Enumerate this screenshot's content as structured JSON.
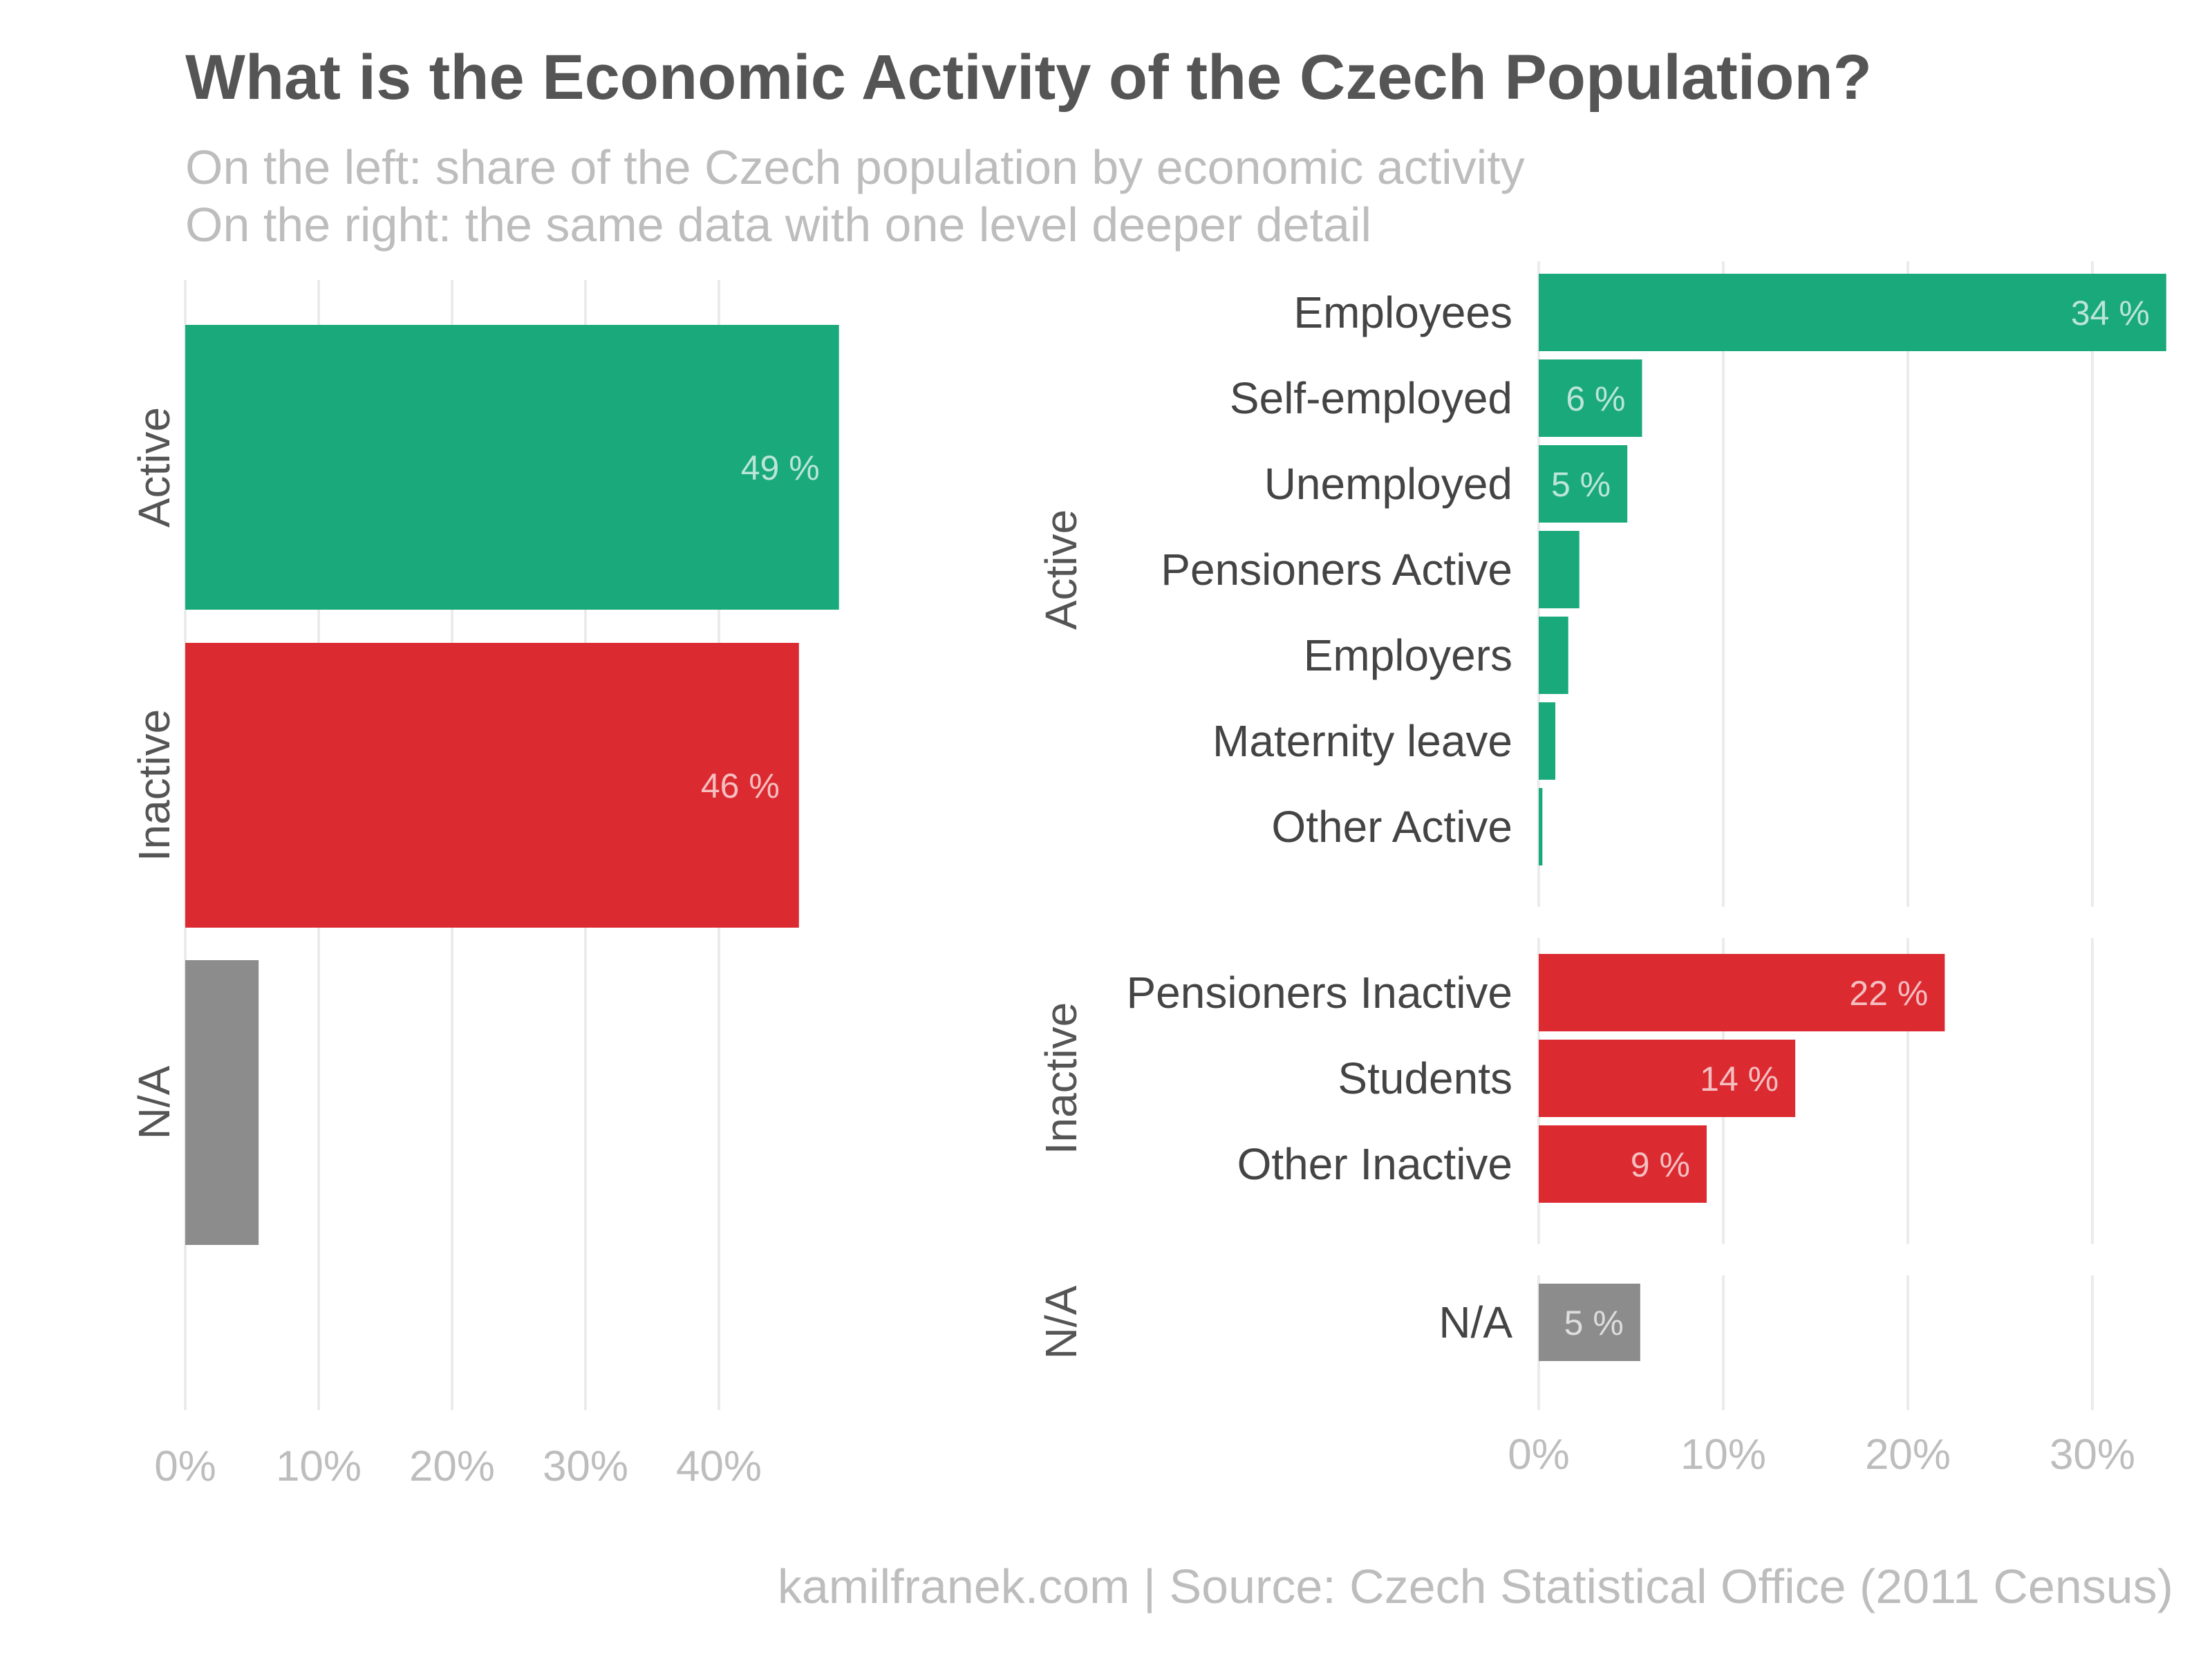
{
  "title": "What is the Economic Activity of the Czech Population?",
  "subtitle_lines": [
    "On the left: share of the Czech population by economic activity",
    "On the right: the same data with one level deeper detail"
  ],
  "caption": "kamilfranek.com  |  Source: Czech Statistical Office (2011 Census)",
  "colors": {
    "Active": "#1aa97a",
    "Inactive": "#dc2a31",
    "N/A": "#8c8c8c"
  },
  "chart_data": [
    {
      "type": "bar",
      "orientation": "horizontal",
      "categories": [
        "Active",
        "Inactive",
        "N/A"
      ],
      "values": [
        49,
        46,
        5.5
      ],
      "value_labels": [
        "49 %",
        "46 %",
        ""
      ],
      "xticks": [
        "0%",
        "10%",
        "20%",
        "30%",
        "40%"
      ],
      "xtick_values": [
        0,
        10,
        20,
        30,
        40
      ],
      "xlim": [
        0,
        50
      ],
      "grid": true
    },
    {
      "type": "bar",
      "orientation": "horizontal",
      "facets": [
        {
          "name": "Active",
          "categories": [
            "Employees",
            "Self-employed",
            "Unemployed",
            "Pensioners Active",
            "Employers",
            "Maternity leave",
            "Other Active"
          ],
          "values": [
            34,
            5.6,
            4.8,
            2.2,
            1.6,
            0.9,
            0.2
          ],
          "value_labels": [
            "34 %",
            "6 %",
            "5 %",
            "",
            "",
            "",
            ""
          ]
        },
        {
          "name": "Inactive",
          "categories": [
            "Pensioners Inactive",
            "Students",
            "Other Inactive"
          ],
          "values": [
            22,
            13.9,
            9.1
          ],
          "value_labels": [
            "22 %",
            "14 %",
            "9 %"
          ]
        },
        {
          "name": "N/A",
          "categories": [
            "N/A"
          ],
          "values": [
            5.5
          ],
          "value_labels": [
            "5 %"
          ]
        }
      ],
      "xticks": [
        "0%",
        "10%",
        "20%",
        "30%"
      ],
      "xtick_values": [
        0,
        10,
        20,
        30
      ],
      "xlim": [
        0,
        34
      ],
      "grid": true
    }
  ]
}
